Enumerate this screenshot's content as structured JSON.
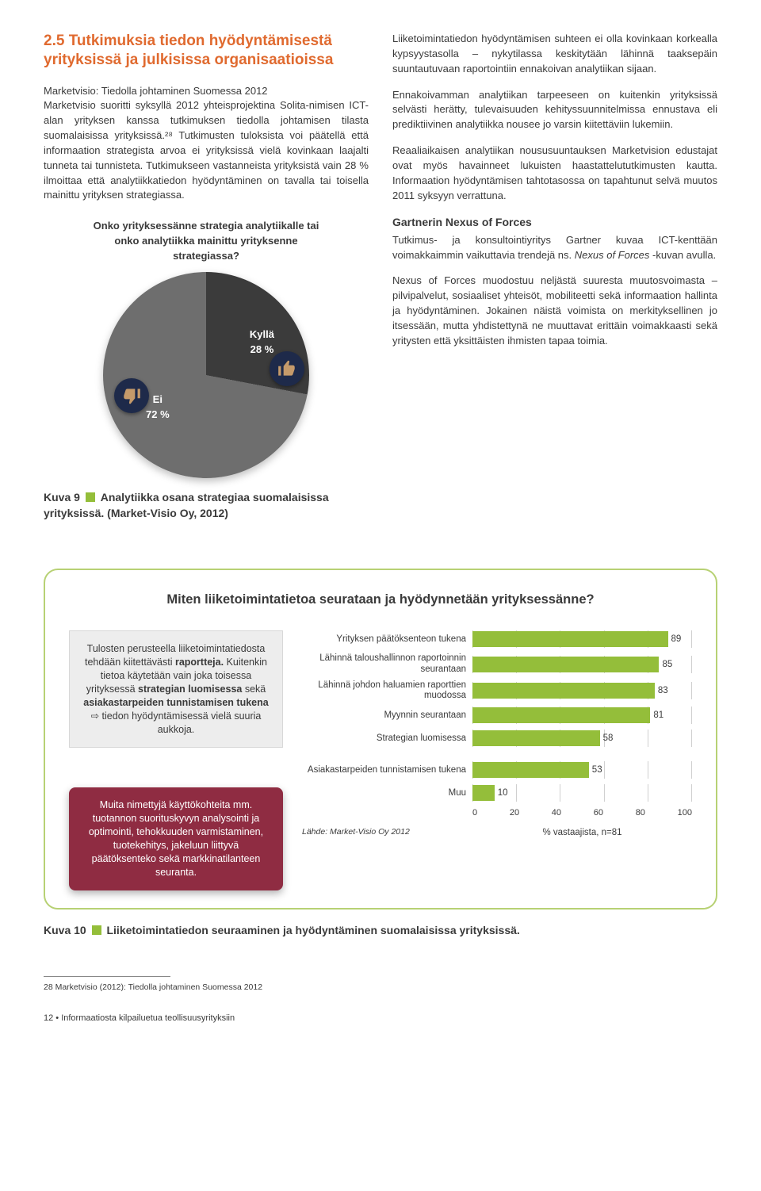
{
  "section": {
    "heading": "2.5 Tutkimuksia tiedon hyödyntämisestä yrityksissä ja julkisissa organisaatioissa",
    "leftLead": "Marketvisio: Tiedolla johtaminen Suomessa 2012",
    "leftPara": "Marketvisio suoritti syksyllä 2012 yhteisprojektina Solita-nimisen ICT-alan yrityksen kanssa tutkimuksen tiedolla johtamisen tilasta suomalaisissa yrityksissä.²⁸ Tutkimusten tuloksista voi päätellä että informaation strategista arvoa ei yrityksissä vielä kovinkaan laajalti tunneta tai tunnisteta. Tutkimukseen vastanneista yrityksistä vain 28 % ilmoittaa että analytiikka­tiedon hyödyntäminen on tavalla tai toisella mainittu yrityksen strategiassa.",
    "rightPara1": "Liiketoimintatiedon hyödyntämisen suhteen ei olla kovinkaan korkealla kypsyystasolla – nykytilassa keskitytään lähinnä taaksepäin suuntautuvaan raportointiin ennakoivan analytiikan sijaan.",
    "rightPara2": "Ennakoivamman analytiikan tarpeeseen on kuitenkin yrityksissä selvästi herätty, tulevaisuuden kehityssuunnitelmissa ennustava eli prediktiivinen analytiikka nousee jo varsin kiitettäviin lukemiin.",
    "rightPara3": "Reaaliaikaisen analytiikan noususuuntauksen Marketvision edustajat ovat myös havainneet lukuisten haastattelututkimusten kautta. Informaation hyödyntämisen tahtotasossa on tapahtunut selvä muutos 2011 syksyyn verrattuna.",
    "gartnerHead": "Gartnerin Nexus of Forces",
    "gartnerPara1a": "Tutkimus- ja konsultointiyritys Gartner kuvaa ICT-kenttään voimakkaimmin vaikuttavia trendejä ns. ",
    "gartnerItalic": "Nexus of Forces",
    "gartnerPara1b": " -kuvan avulla.",
    "gartnerPara2": "Nexus of Forces muodostuu neljästä suuresta muutosvoimasta – pilvipalvelut, sosiaaliset yhteisöt, mobiliteetti sekä informaation hallinta ja hyödyntäminen. Jokainen näistä voimista on merkityksellinen jo itsessään, mutta yhdistettynä ne muuttavat erittäin voimakkaasti sekä yritysten että yksittäisten ihmisten tapaa toimia."
  },
  "pie": {
    "title": "Onko yrityksessänne strategia analytiikalle tai onko analytiikka mainittu yrityksenne strategiassa?",
    "yes_label": "Kyllä",
    "yes_pct_text": "28 %",
    "yes_pct": 28,
    "no_label": "Ei",
    "no_pct_text": "72 %",
    "yes_color": "#3b3b3b",
    "no_color": "#6e6e6e",
    "thumb_bg": "#1e2a4a",
    "cuff_color": "#c59a6a"
  },
  "fig9": {
    "label": "Kuva 9",
    "text": "Analytiikka osana strategiaa suomalaisissa yrityksissä. (Market-Visio Oy, 2012)"
  },
  "barChart": {
    "boxTitle": "Miten liiketoimintatietoa seurataan ja hyödynnetään yrityksessänne?",
    "greyCallout": {
      "l1": "Tulosten perusteella liiketoimintatiedosta tehdään kiitettävästi ",
      "b1": "raportteja.",
      "l2": " Kuitenkin tietoa käytetään vain joka toisessa yrityksessä ",
      "b2": "strategian luomisessa",
      "l3": " sekä ",
      "b3": "asiakastarpeiden tunnistamisen tukena",
      "l4": " ⇨ tiedon hyödyntämisessä vielä suuria aukkoja."
    },
    "redCallout": "Muita nimettyjä käyttökohteita mm. tuotannon suorituskyvyn analysointi ja optimointi, tehokkuuden varmistaminen, tuotekehitys, jakeluun liittyvä päätöksenteko sekä markkinatilanteen seuranta.",
    "bar_color": "#94be3a",
    "xmax": 100,
    "ticks": [
      "0",
      "20",
      "40",
      "60",
      "80",
      "100"
    ],
    "axis_label": "% vastaajista, n=81",
    "source": "Lähde: Market-Visio Oy 2012",
    "items": [
      {
        "label": "Yrityksen päätöksenteon tukena",
        "val": 89
      },
      {
        "label": "Lähinnä taloushallinnon raportoinnin seurantaan",
        "val": 85
      },
      {
        "label": "Lähinnä johdon haluamien raporttien muodossa",
        "val": 83
      },
      {
        "label": "Myynnin seurantaan",
        "val": 81
      },
      {
        "label": "Strategian luomisessa",
        "val": 58
      },
      {
        "label": "Asiakastarpeiden tunnistamisen tukena",
        "val": 53
      },
      {
        "label": "Muu",
        "val": 10
      }
    ]
  },
  "fig10": {
    "label": "Kuva 10",
    "text": "Liiketoimintatiedon seuraaminen ja hyödyntäminen suomalaisissa yrityksissä."
  },
  "footnote": "28 Marketvisio (2012): Tiedolla johtaminen Suomessa 2012",
  "pageFoot": "12 • Informaatiosta kilpailuetua teollisuusyrityksiin"
}
